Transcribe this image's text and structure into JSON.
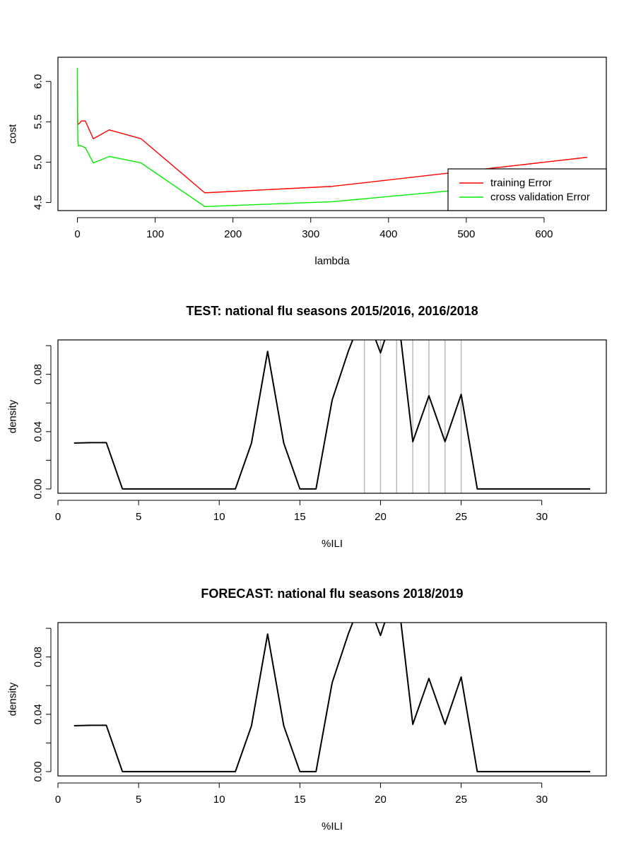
{
  "colors": {
    "training": "#ff0000",
    "cv": "#00ee00",
    "density": "#000000",
    "vlines": "#bebebe"
  },
  "chart_data": [
    {
      "id": "cost",
      "type": "line",
      "title": "",
      "xlabel": "lambda",
      "ylabel": "cost",
      "xlim": [
        -25,
        680
      ],
      "ylim": [
        4.4,
        6.3
      ],
      "xticks": [
        0,
        100,
        200,
        300,
        400,
        500,
        600
      ],
      "yticks": [
        4.5,
        5.0,
        5.5,
        6.0
      ],
      "ytick_labels": [
        "4.5",
        "5.0",
        "5.5",
        "6.0"
      ],
      "legend_position": "bottom-right",
      "series": [
        {
          "name": "training Error",
          "color": "#ff0000",
          "x": [
            0,
            0.16,
            0.32,
            0.64,
            1.28,
            2.56,
            5.12,
            10.24,
            20.48,
            40.96,
            81.92,
            163.84,
            327.68,
            655.36
          ],
          "y": [
            5.88,
            5.7,
            5.55,
            5.48,
            5.47,
            5.48,
            5.51,
            5.51,
            5.29,
            5.4,
            5.29,
            4.62,
            4.7,
            5.06
          ]
        },
        {
          "name": "cross validation Error",
          "color": "#00ee00",
          "x": [
            0,
            0.16,
            0.32,
            0.64,
            1.28,
            2.56,
            5.12,
            10.24,
            20.48,
            40.96,
            81.92,
            163.84,
            327.68,
            655.36
          ],
          "y": [
            6.17,
            5.8,
            5.45,
            5.25,
            5.2,
            5.21,
            5.2,
            5.18,
            4.99,
            5.07,
            4.99,
            4.45,
            4.51,
            4.8
          ]
        }
      ]
    },
    {
      "id": "test",
      "type": "line",
      "title": "TEST: national flu seasons 2015/2016, 2016/2018",
      "xlabel": "%ILI",
      "ylabel": "density",
      "xlim": [
        0,
        34
      ],
      "ylim": [
        -0.003,
        0.104
      ],
      "xticks": [
        0,
        5,
        10,
        15,
        20,
        25,
        30
      ],
      "yticks": [
        0,
        0.02,
        0.04,
        0.06,
        0.08,
        0.1
      ],
      "ytick_labels": [
        "0.00",
        "",
        "0.04",
        "",
        "0.08",
        ""
      ],
      "vlines": [
        19,
        20,
        21,
        22,
        23,
        24,
        25
      ],
      "series": [
        {
          "x": [
            1,
            2,
            3,
            4,
            5,
            6,
            7,
            8,
            9,
            10,
            11,
            12,
            13,
            14,
            15,
            16,
            17,
            18,
            19,
            20,
            21,
            22,
            23,
            24,
            25,
            26,
            27,
            28,
            29,
            30,
            31,
            32,
            33
          ],
          "y": [
            0.032,
            0.0323,
            0.0323,
            0,
            0,
            0,
            0,
            0,
            0,
            0,
            0,
            0.032,
            0.096,
            0.032,
            0,
            0,
            0.062,
            0.096,
            0.125,
            0.095,
            0.13,
            0.033,
            0.065,
            0.033,
            0.066,
            0,
            0,
            0,
            0,
            0,
            0,
            0,
            0
          ]
        }
      ]
    },
    {
      "id": "forecast",
      "type": "line",
      "title": "FORECAST: national flu seasons 2018/2019",
      "xlabel": "%ILI",
      "ylabel": "density",
      "xlim": [
        0,
        34
      ],
      "ylim": [
        -0.003,
        0.104
      ],
      "xticks": [
        0,
        5,
        10,
        15,
        20,
        25,
        30
      ],
      "yticks": [
        0,
        0.02,
        0.04,
        0.06,
        0.08,
        0.1
      ],
      "ytick_labels": [
        "0.00",
        "",
        "0.04",
        "",
        "0.08",
        ""
      ],
      "vlines": [],
      "series": [
        {
          "x": [
            1,
            2,
            3,
            4,
            5,
            6,
            7,
            8,
            9,
            10,
            11,
            12,
            13,
            14,
            15,
            16,
            17,
            18,
            19,
            20,
            21,
            22,
            23,
            24,
            25,
            26,
            27,
            28,
            29,
            30,
            31,
            32,
            33
          ],
          "y": [
            0.032,
            0.0323,
            0.0323,
            0,
            0,
            0,
            0,
            0,
            0,
            0,
            0,
            0.032,
            0.096,
            0.032,
            0,
            0,
            0.062,
            0.096,
            0.125,
            0.095,
            0.13,
            0.033,
            0.065,
            0.033,
            0.066,
            0,
            0,
            0,
            0,
            0,
            0,
            0,
            0
          ]
        }
      ]
    }
  ]
}
